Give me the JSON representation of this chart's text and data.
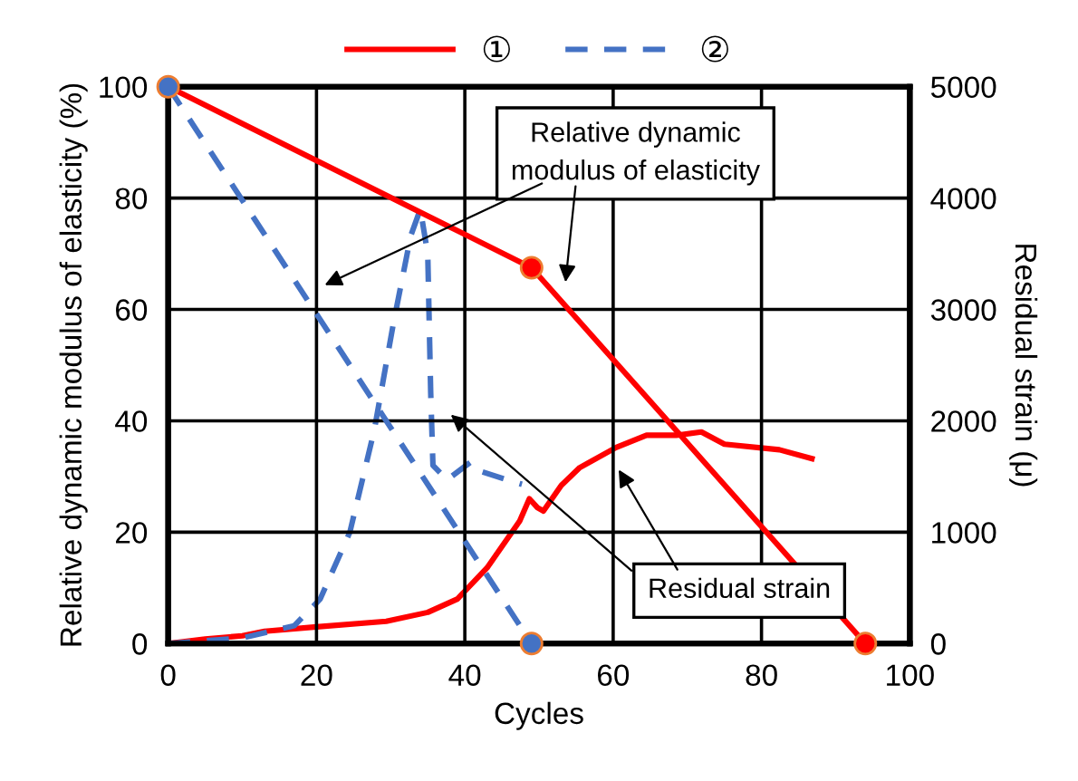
{
  "chart_data": {
    "type": "line",
    "xlabel": "Cycles",
    "ylabel": "Relative dynamic modulus of elasticity (%)",
    "y2label": "Residual strain (μ)",
    "xlim": [
      0,
      100
    ],
    "xticks": [
      0,
      20,
      40,
      60,
      80,
      100
    ],
    "ylim": [
      0,
      100
    ],
    "yticks": [
      0,
      20,
      40,
      60,
      80,
      100
    ],
    "y2lim": [
      0,
      5000
    ],
    "y2ticks": [
      0,
      1000,
      2000,
      3000,
      4000,
      5000
    ],
    "grid": true,
    "legend": "top",
    "marker": "none",
    "series": [
      {
        "name": "①",
        "color": "#ff0000",
        "line_style": "solid",
        "x": [
          0,
          49,
          94
        ],
        "values": [
          100,
          67.5,
          0
        ]
      },
      {
        "name": "②",
        "color": "#4472c4",
        "line_style": "dashed",
        "x": [
          0,
          49
        ],
        "values": [
          100,
          0
        ]
      },
      {
        "color": "#ff0000",
        "line_style": "solid",
        "axis": "y2",
        "x": [
          0,
          5,
          10,
          13,
          20,
          29.4,
          35,
          39,
          43,
          47.4,
          48.7,
          49.8,
          50.6,
          53,
          55.5,
          60.4,
          64.5,
          68.5,
          71.9,
          75,
          82.4,
          86.8
        ],
        "values": [
          0,
          40,
          70,
          110,
          150,
          200,
          280,
          400,
          680,
          1100,
          1300,
          1220,
          1190,
          1420,
          1580,
          1760,
          1870,
          1870,
          1900,
          1790,
          1740,
          1660
        ]
      },
      {
        "color": "#4472c4",
        "line_style": "dashed",
        "axis": "y2",
        "x": [
          0,
          10,
          17,
          20.5,
          24.5,
          27.8,
          30.3,
          32.7,
          34,
          35,
          35.4,
          35.7,
          37.6,
          40.8,
          42,
          45.7,
          47.7
        ],
        "values": [
          0,
          50,
          160,
          400,
          1000,
          1920,
          2850,
          3660,
          3900,
          3500,
          2250,
          1600,
          1470,
          1630,
          1550,
          1470,
          1430
        ]
      },
      {
        "type": "scatter",
        "color": "#ff0000",
        "marker": "circle",
        "x": [
          49,
          94
        ],
        "values": [
          67.5,
          0
        ]
      },
      {
        "type": "scatter",
        "color": "#4472c4",
        "marker": "circle",
        "x": [
          0,
          49
        ],
        "values": [
          100,
          0
        ]
      }
    ],
    "annotations": [
      "Relative dynamic\nmodulus of elasticity",
      "Residual strain"
    ]
  }
}
